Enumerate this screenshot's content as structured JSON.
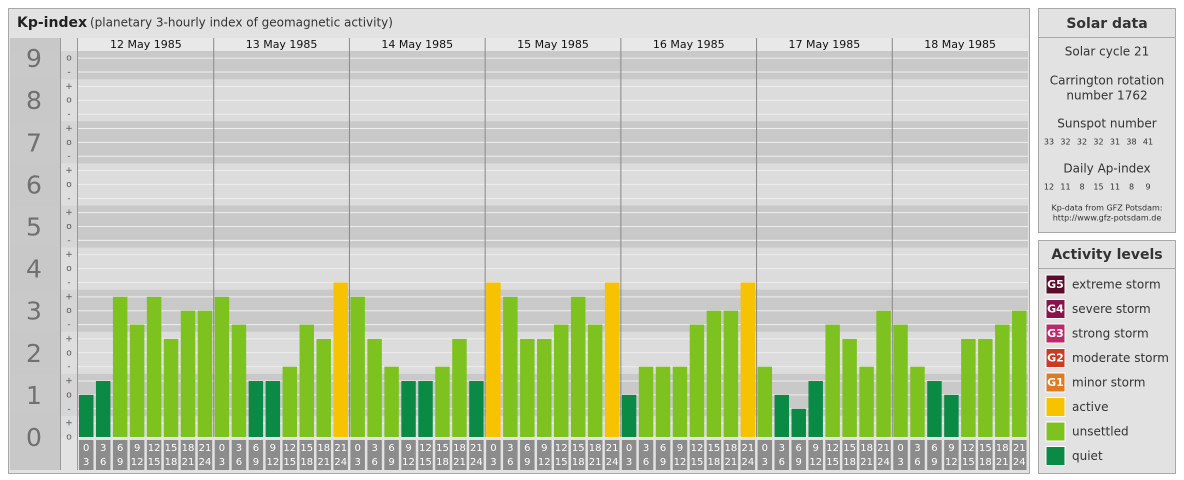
{
  "chart_data": {
    "type": "bar",
    "title": "Kp-index",
    "subtitle": "(planetary 3-hourly index of geomagnetic activity)",
    "ylim": [
      0,
      9.17
    ],
    "yticks": [
      0,
      1,
      2,
      3,
      4,
      5,
      6,
      7,
      8,
      9
    ],
    "minor_ticks": [
      {
        "value": 0,
        "label": "o"
      },
      {
        "value": 0.33,
        "label": "+"
      },
      {
        "value": 0.67,
        "label": "-"
      },
      {
        "value": 1,
        "label": "o"
      },
      {
        "value": 1.33,
        "label": "+"
      },
      {
        "value": 1.67,
        "label": "-"
      },
      {
        "value": 2,
        "label": "o"
      },
      {
        "value": 2.33,
        "label": "+"
      },
      {
        "value": 2.67,
        "label": "-"
      },
      {
        "value": 3,
        "label": "o"
      },
      {
        "value": 3.33,
        "label": "+"
      },
      {
        "value": 3.67,
        "label": "-"
      },
      {
        "value": 4,
        "label": "o"
      },
      {
        "value": 4.33,
        "label": "+"
      },
      {
        "value": 4.67,
        "label": "-"
      },
      {
        "value": 5,
        "label": "o"
      },
      {
        "value": 5.33,
        "label": "+"
      },
      {
        "value": 5.67,
        "label": "-"
      },
      {
        "value": 6,
        "label": "o"
      },
      {
        "value": 6.33,
        "label": "+"
      },
      {
        "value": 6.67,
        "label": "-"
      },
      {
        "value": 7,
        "label": "o"
      },
      {
        "value": 7.33,
        "label": "+"
      },
      {
        "value": 7.67,
        "label": "-"
      },
      {
        "value": 8,
        "label": "o"
      },
      {
        "value": 8.33,
        "label": "+"
      },
      {
        "value": 8.67,
        "label": "-"
      },
      {
        "value": 9,
        "label": "o"
      }
    ],
    "hours": [
      [
        "0",
        "3"
      ],
      [
        "3",
        "6"
      ],
      [
        "6",
        "9"
      ],
      [
        "9",
        "12"
      ],
      [
        "12",
        "15"
      ],
      [
        "15",
        "18"
      ],
      [
        "18",
        "21"
      ],
      [
        "21",
        "24"
      ]
    ],
    "days": [
      {
        "date": "12 May 1985",
        "values": [
          1,
          1.33,
          3.33,
          2.67,
          3.33,
          2.33,
          3,
          3
        ],
        "colors": [
          "#0b8a45",
          "#0b8a45",
          "#7dc21e",
          "#7dc21e",
          "#7dc21e",
          "#7dc21e",
          "#7dc21e",
          "#7dc21e"
        ]
      },
      {
        "date": "13 May 1985",
        "values": [
          3.33,
          2.67,
          1.33,
          1.33,
          1.67,
          2.67,
          2.33,
          3.67
        ],
        "colors": [
          "#7dc21e",
          "#7dc21e",
          "#0b8a45",
          "#0b8a45",
          "#7dc21e",
          "#7dc21e",
          "#7dc21e",
          "#f7c200"
        ]
      },
      {
        "date": "14 May 1985",
        "values": [
          3.33,
          2.33,
          1.67,
          1.33,
          1.33,
          1.67,
          2.33,
          1.33
        ],
        "colors": [
          "#7dc21e",
          "#7dc21e",
          "#7dc21e",
          "#0b8a45",
          "#0b8a45",
          "#7dc21e",
          "#7dc21e",
          "#0b8a45"
        ]
      },
      {
        "date": "15 May 1985",
        "values": [
          3.67,
          3.33,
          2.33,
          2.33,
          2.67,
          3.33,
          2.67,
          3.67
        ],
        "colors": [
          "#f7c200",
          "#7dc21e",
          "#7dc21e",
          "#7dc21e",
          "#7dc21e",
          "#7dc21e",
          "#7dc21e",
          "#f7c200"
        ]
      },
      {
        "date": "16 May 1985",
        "values": [
          1,
          1.67,
          1.67,
          1.67,
          2.67,
          3,
          3,
          3.67
        ],
        "colors": [
          "#0b8a45",
          "#7dc21e",
          "#7dc21e",
          "#7dc21e",
          "#7dc21e",
          "#7dc21e",
          "#7dc21e",
          "#f7c200"
        ]
      },
      {
        "date": "17 May 1985",
        "values": [
          1.67,
          1,
          0.67,
          1.33,
          2.67,
          2.33,
          1.67,
          3
        ],
        "colors": [
          "#7dc21e",
          "#0b8a45",
          "#0b8a45",
          "#0b8a45",
          "#7dc21e",
          "#7dc21e",
          "#7dc21e",
          "#7dc21e"
        ]
      },
      {
        "date": "18 May 1985",
        "values": [
          2.67,
          1.67,
          1.33,
          1,
          2.33,
          2.33,
          2.67,
          3
        ],
        "colors": [
          "#7dc21e",
          "#7dc21e",
          "#0b8a45",
          "#0b8a45",
          "#7dc21e",
          "#7dc21e",
          "#7dc21e",
          "#7dc21e"
        ]
      }
    ]
  },
  "solar_panel": {
    "title": "Solar data",
    "cycle": "Solar cycle 21",
    "rotation": [
      "Carrington rotation",
      "number 1762"
    ],
    "sunspot_title": "Sunspot number",
    "sunspots": [
      "33",
      "32",
      "32",
      "32",
      "31",
      "38",
      "41"
    ],
    "ap_title": "Daily Ap-index",
    "ap": [
      "12",
      "11",
      "8",
      "15",
      "11",
      "8",
      "9"
    ],
    "source": [
      "Kp-data from GFZ Potsdam:",
      "http://www.gfz-potsdam.de"
    ]
  },
  "legend": {
    "title": "Activity levels",
    "items": [
      {
        "badge": "G5",
        "label": "extreme storm",
        "color": "#5a0a2a"
      },
      {
        "badge": "G4",
        "label": "severe storm",
        "color": "#86164a"
      },
      {
        "badge": "G3",
        "label": "strong storm",
        "color": "#b82a68"
      },
      {
        "badge": "G2",
        "label": "moderate storm",
        "color": "#cc3a22"
      },
      {
        "badge": "G1",
        "label": "minor storm",
        "color": "#de7a22"
      },
      {
        "badge": null,
        "label": "active",
        "color": "#f7c200"
      },
      {
        "badge": null,
        "label": "unsettled",
        "color": "#7dc21e"
      },
      {
        "badge": null,
        "label": "quiet",
        "color": "#0b8a45"
      }
    ]
  }
}
